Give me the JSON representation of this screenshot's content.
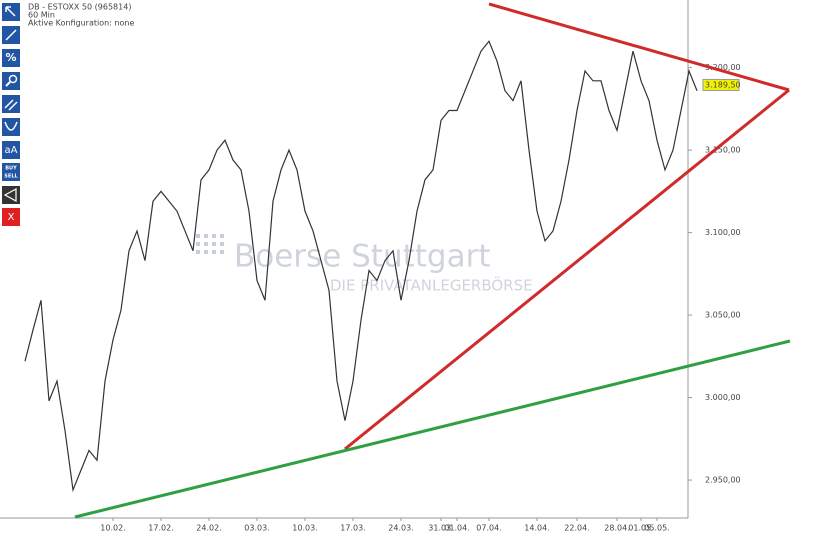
{
  "header": [
    "DB - ESTOXX 50 (965814)",
    "60 Min",
    "Aktive Konfiguration: none"
  ],
  "toolbar": [
    "%",
    "aA",
    "BUY",
    "SELL",
    "X"
  ],
  "watermark": {
    "brand": "Boerse Stuttgart",
    "slogan": "DIE PRIVATANLEGERBÖRSE"
  },
  "chart_data": {
    "type": "line",
    "color": "#333333",
    "categories": [
      null,
      null,
      null,
      null,
      null,
      null,
      null,
      null,
      null,
      null,
      null,
      "10.02.",
      null,
      null,
      null,
      null,
      null,
      "17.02.",
      null,
      null,
      null,
      null,
      null,
      "24.02.",
      null,
      null,
      null,
      null,
      null,
      "03.03.",
      null,
      null,
      null,
      null,
      null,
      "10.03.",
      null,
      null,
      null,
      null,
      null,
      "17.03.",
      null,
      null,
      null,
      null,
      null,
      "24.03.",
      null,
      null,
      null,
      null,
      "31.03.",
      null,
      "01.04.",
      null,
      null,
      null,
      "07.04.",
      null,
      null,
      null,
      null,
      null,
      "14.04.",
      null,
      null,
      null,
      null,
      "22.04.",
      null,
      null,
      null,
      null,
      "28.04.",
      null,
      null,
      "01.05.",
      null,
      "05.05.",
      null,
      null,
      null,
      null,
      null
    ],
    "values": [
      3022,
      3041,
      3059,
      2998,
      3010,
      2980,
      2944,
      2956,
      2968,
      2962,
      3010,
      3035,
      3053,
      3089,
      3101,
      3083,
      3119,
      3125,
      3119,
      3113,
      3101,
      3089,
      3132,
      3138,
      3150,
      3156,
      3144,
      3138,
      3113,
      3071,
      3059,
      3119,
      3138,
      3150,
      3138,
      3113,
      3101,
      3083,
      3065,
      3010,
      2986,
      3010,
      3047,
      3077,
      3071,
      3083,
      3089,
      3059,
      3083,
      3113,
      3132,
      3138,
      3168,
      3174,
      3174,
      3186,
      3198,
      3210,
      3216,
      3204,
      3186,
      3180,
      3192,
      3150,
      3113,
      3095,
      3101,
      3119,
      3144,
      3174,
      3198,
      3192,
      3192,
      3174,
      3162,
      3186,
      3210,
      3192,
      3180,
      3156,
      3138,
      3150,
      3174,
      3198,
      3186
    ],
    "ylim": [
      2927,
      3241
    ],
    "yticks": [
      {
        "value": 2950,
        "label": "2.950,00"
      },
      {
        "value": 3000,
        "label": "3.000,00"
      },
      {
        "value": 3050,
        "label": "3.050,00"
      },
      {
        "value": 3100,
        "label": "3.100,00"
      },
      {
        "value": 3150,
        "label": "3.150,00"
      },
      {
        "value": 3200,
        "label": "3.200,00"
      }
    ],
    "last_value": {
      "value": 3189.5,
      "label": "3.189,50"
    }
  }
}
